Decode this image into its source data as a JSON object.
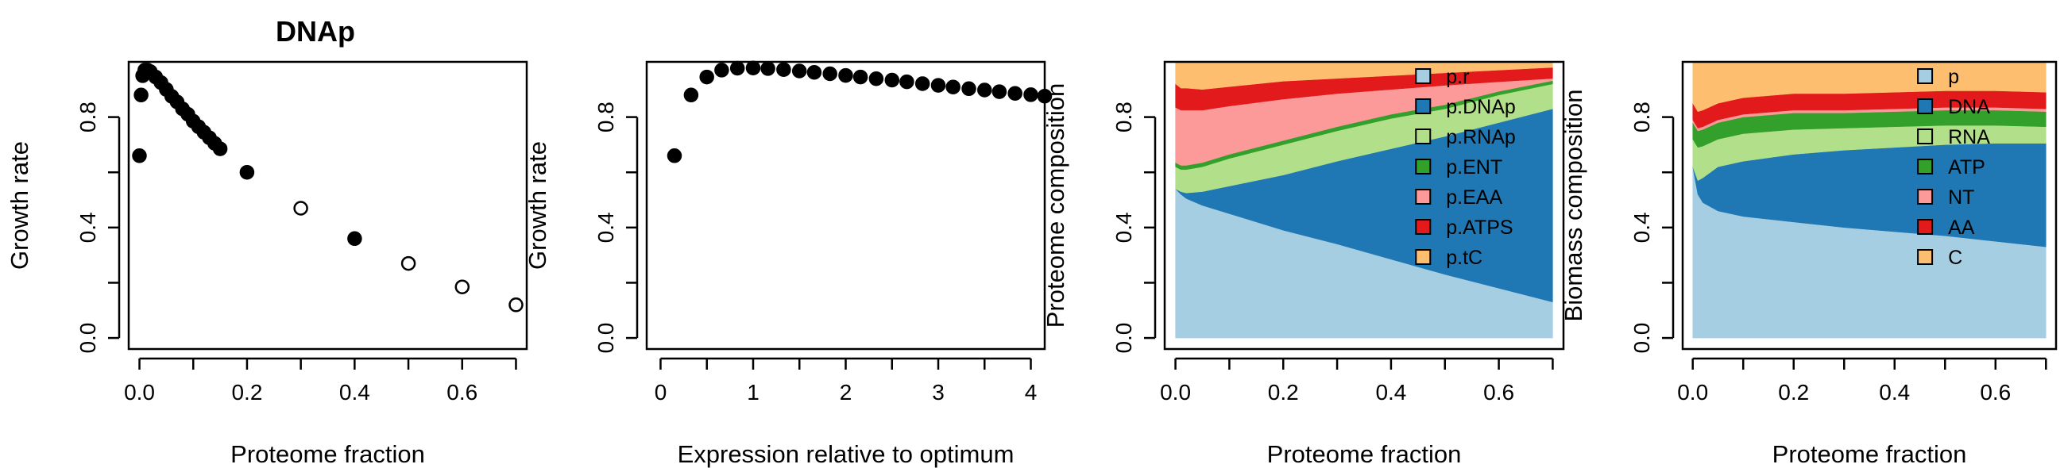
{
  "figure_title": "DNAp",
  "chart_data": [
    {
      "type": "scatter",
      "xlabel": "Proteome fraction",
      "ylabel": "Growth rate",
      "xlim": [
        -0.02,
        0.72
      ],
      "ylim": [
        -0.04,
        1.0
      ],
      "x_ticks": [
        "0.0",
        "0.2",
        "0.4",
        "0.6"
      ],
      "y_ticks": [
        "0.0",
        "0.4",
        "0.8"
      ],
      "series": [
        {
          "marker": "filled",
          "x": [
            0.0,
            0.003,
            0.006,
            0.01,
            0.015,
            0.02,
            0.03,
            0.04,
            0.05,
            0.06,
            0.07,
            0.08,
            0.09,
            0.1,
            0.11,
            0.12,
            0.13,
            0.14,
            0.15,
            0.2,
            0.4
          ],
          "y": [
            0.66,
            0.88,
            0.95,
            0.97,
            0.97,
            0.965,
            0.945,
            0.925,
            0.9,
            0.875,
            0.855,
            0.83,
            0.81,
            0.785,
            0.765,
            0.745,
            0.725,
            0.705,
            0.685,
            0.6,
            0.36
          ]
        },
        {
          "marker": "open",
          "x": [
            0.3,
            0.5,
            0.6,
            0.7
          ],
          "y": [
            0.47,
            0.27,
            0.185,
            0.12
          ]
        }
      ]
    },
    {
      "type": "scatter",
      "xlabel": "Expression relative to optimum",
      "ylabel": "Growth rate",
      "xlim": [
        -0.15,
        4.15
      ],
      "ylim": [
        -0.04,
        1.0
      ],
      "x_ticks": [
        "0",
        "1",
        "2",
        "3",
        "4"
      ],
      "y_ticks": [
        "0.0",
        "0.4",
        "0.8"
      ],
      "series": [
        {
          "marker": "filled",
          "x": [
            0.15,
            0.33,
            0.5,
            0.66,
            0.83,
            1.0,
            1.16,
            1.33,
            1.5,
            1.66,
            1.83,
            2.0,
            2.16,
            2.33,
            2.5,
            2.66,
            2.83,
            3.0,
            3.16,
            3.33,
            3.5,
            3.66,
            3.83,
            4.0,
            4.15
          ],
          "y": [
            0.66,
            0.88,
            0.945,
            0.97,
            0.977,
            0.978,
            0.976,
            0.972,
            0.967,
            0.962,
            0.957,
            0.951,
            0.945,
            0.939,
            0.934,
            0.928,
            0.921,
            0.915,
            0.909,
            0.903,
            0.898,
            0.892,
            0.886,
            0.881,
            0.876
          ]
        }
      ]
    },
    {
      "type": "area",
      "stacked": true,
      "xlabel": "Proteome fraction",
      "ylabel": "Proteome composition",
      "xlim": [
        -0.02,
        0.72
      ],
      "ylim": [
        -0.04,
        1.0
      ],
      "x_ticks": [
        "0.0",
        "0.2",
        "0.4",
        "0.6"
      ],
      "y_ticks": [
        "0.0",
        "0.4",
        "0.8"
      ],
      "legend_position": "top-right",
      "x": [
        0.0,
        0.01,
        0.02,
        0.05,
        0.1,
        0.2,
        0.3,
        0.4,
        0.5,
        0.6,
        0.7
      ],
      "series": [
        {
          "name": "p.r",
          "color": "#a6cee3",
          "values": [
            0.54,
            0.52,
            0.505,
            0.48,
            0.45,
            0.39,
            0.34,
            0.285,
            0.23,
            0.18,
            0.13
          ]
        },
        {
          "name": "p.DNAp",
          "color": "#1f78b4",
          "values": [
            0.0,
            0.01,
            0.02,
            0.05,
            0.1,
            0.2,
            0.3,
            0.4,
            0.5,
            0.6,
            0.7
          ]
        },
        {
          "name": "p.RNAp",
          "color": "#b2df8a",
          "values": [
            0.08,
            0.08,
            0.085,
            0.09,
            0.1,
            0.11,
            0.11,
            0.11,
            0.1,
            0.1,
            0.09
          ]
        },
        {
          "name": "p.ENT",
          "color": "#33a02c",
          "values": [
            0.015,
            0.015,
            0.015,
            0.015,
            0.015,
            0.015,
            0.015,
            0.015,
            0.015,
            0.013,
            0.012
          ]
        },
        {
          "name": "p.EAA",
          "color": "#fb9a99",
          "values": [
            0.2,
            0.2,
            0.2,
            0.19,
            0.175,
            0.15,
            0.12,
            0.09,
            0.07,
            0.035,
            0.008
          ]
        },
        {
          "name": "p.ATPS",
          "color": "#e31a1c",
          "values": [
            0.085,
            0.08,
            0.08,
            0.075,
            0.07,
            0.065,
            0.055,
            0.05,
            0.045,
            0.042,
            0.04
          ]
        },
        {
          "name": "p.tC",
          "color": "#fdbf6f",
          "values": [
            0.08,
            0.095,
            0.095,
            0.1,
            0.09,
            0.07,
            0.06,
            0.05,
            0.04,
            0.03,
            0.02
          ]
        }
      ]
    },
    {
      "type": "area",
      "stacked": true,
      "xlabel": "Proteome fraction",
      "ylabel": "Biomass composition",
      "xlim": [
        -0.02,
        0.72
      ],
      "ylim": [
        -0.04,
        1.0
      ],
      "x_ticks": [
        "0.0",
        "0.2",
        "0.4",
        "0.6"
      ],
      "y_ticks": [
        "0.0",
        "0.4",
        "0.8"
      ],
      "legend_position": "top-right",
      "x": [
        0.0,
        0.01,
        0.02,
        0.05,
        0.1,
        0.2,
        0.3,
        0.4,
        0.5,
        0.6,
        0.7
      ],
      "series": [
        {
          "name": "p",
          "color": "#a6cee3",
          "values": [
            0.62,
            0.52,
            0.49,
            0.46,
            0.44,
            0.42,
            0.4,
            0.385,
            0.37,
            0.35,
            0.33
          ]
        },
        {
          "name": "DNA",
          "color": "#1f78b4",
          "values": [
            0.0,
            0.05,
            0.09,
            0.16,
            0.2,
            0.245,
            0.28,
            0.305,
            0.33,
            0.355,
            0.375
          ]
        },
        {
          "name": "RNA",
          "color": "#b2df8a",
          "values": [
            0.1,
            0.12,
            0.115,
            0.1,
            0.1,
            0.09,
            0.08,
            0.075,
            0.07,
            0.065,
            0.06
          ]
        },
        {
          "name": "ATP",
          "color": "#33a02c",
          "values": [
            0.06,
            0.06,
            0.06,
            0.06,
            0.06,
            0.06,
            0.055,
            0.055,
            0.055,
            0.055,
            0.055
          ]
        },
        {
          "name": "NT",
          "color": "#fb9a99",
          "values": [
            0.01,
            0.01,
            0.01,
            0.01,
            0.01,
            0.01,
            0.01,
            0.01,
            0.01,
            0.01,
            0.01
          ]
        },
        {
          "name": "AA",
          "color": "#e31a1c",
          "values": [
            0.06,
            0.06,
            0.06,
            0.06,
            0.06,
            0.06,
            0.06,
            0.06,
            0.06,
            0.06,
            0.06
          ]
        },
        {
          "name": "C",
          "color": "#fdbf6f",
          "values": [
            0.15,
            0.18,
            0.175,
            0.15,
            0.13,
            0.115,
            0.115,
            0.11,
            0.105,
            0.105,
            0.11
          ]
        }
      ]
    }
  ]
}
